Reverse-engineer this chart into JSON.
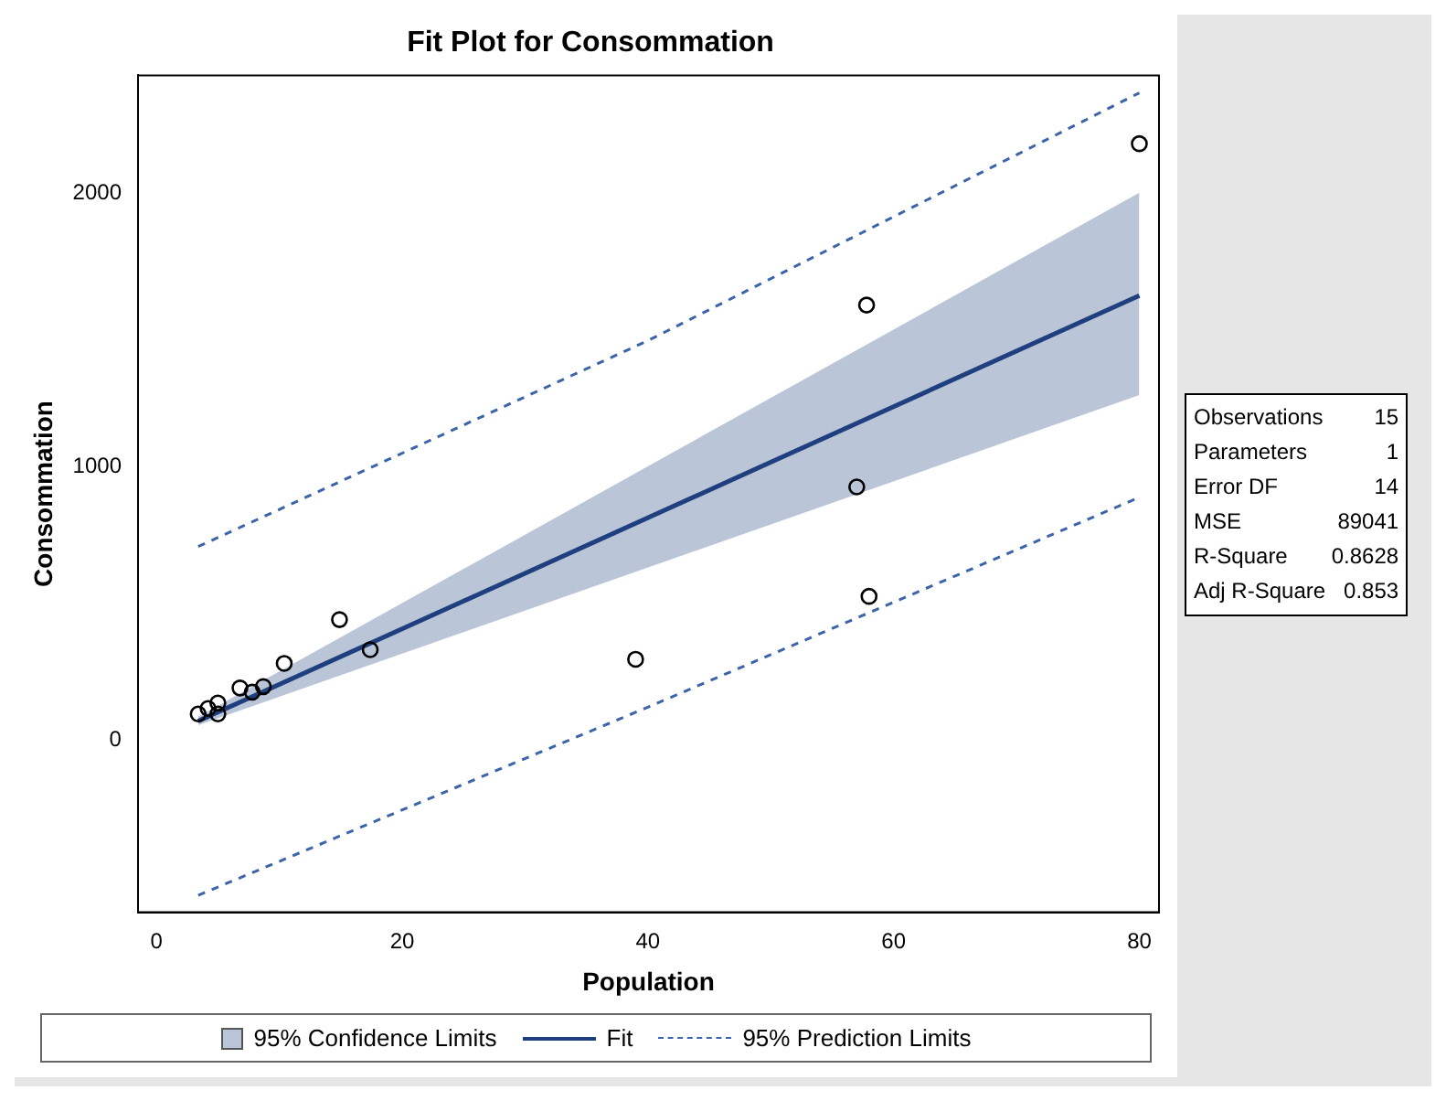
{
  "chart_data": {
    "type": "scatter",
    "title": "Fit Plot for Consommation",
    "xlabel": "Population",
    "ylabel": "Consommation",
    "xlim": [
      -1.5,
      81.6
    ],
    "xticks": [
      0,
      20,
      40,
      60,
      80
    ],
    "ylim": [
      -630,
      2430
    ],
    "yticks": [
      0,
      1000,
      2000
    ],
    "grid": false,
    "legend": "bottom",
    "marker": "none",
    "series": [
      {
        "type": "line",
        "name": "Fit",
        "color": "#1f3f7f",
        "line_style": "solid",
        "x": [
          3.4,
          80
        ],
        "values": [
          69,
          1625
        ],
        "lower": [
          54,
          1261
        ],
        "upper": [
          85,
          2001
        ]
      },
      {
        "type": "line",
        "name": "95% Prediction Limits",
        "color": "#3c64a8",
        "line_style": "dashed",
        "x": [
          3.4,
          40,
          80
        ],
        "values": [
          707,
          1460,
          2366
        ]
      },
      {
        "type": "line",
        "color": "#3c64a8",
        "line_style": "dashed",
        "x": [
          3.4,
          40,
          80
        ],
        "values": [
          -568,
          120,
          887
        ]
      },
      {
        "marker": "circle",
        "color": "#000000",
        "x": [
          3.4,
          4.2,
          5,
          5,
          6.8,
          7.8,
          8.7,
          10.4,
          14.9,
          17.4,
          39,
          57,
          57.8,
          58,
          80
        ],
        "values": [
          95,
          115,
          135,
          95,
          190,
          175,
          195,
          280,
          440,
          330,
          295,
          925,
          1590,
          525,
          2180
        ]
      }
    ],
    "annotations": [
      "95% Confidence Limits",
      "Observations 15",
      "Parameters 1",
      "Error DF 14",
      "MSE 89041",
      "R-Square 0.8628",
      "Adj R-Square 0.853"
    ]
  }
}
